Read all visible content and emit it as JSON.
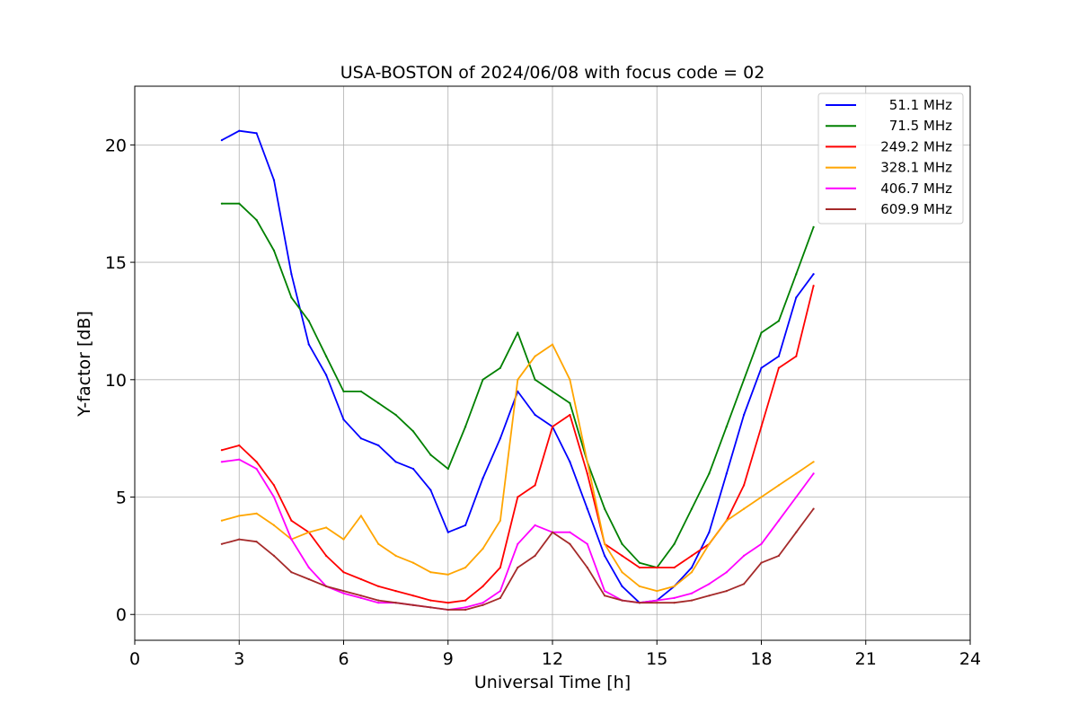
{
  "chart_data": {
    "type": "line",
    "title": "USA-BOSTON of 2024/06/08 with focus code = 02",
    "xlabel": "Universal Time [h]",
    "ylabel": "Y-factor [dB]",
    "xlim": [
      0,
      24
    ],
    "ylim": [
      -1.1,
      22.5
    ],
    "xticks": [
      0,
      3,
      6,
      9,
      12,
      15,
      18,
      21,
      24
    ],
    "yticks": [
      0,
      5,
      10,
      15,
      20
    ],
    "grid": true,
    "legend_position": "top-right",
    "series": [
      {
        "name": "51.1 MHz",
        "color": "#0000ff",
        "x": [
          2.5,
          3.0,
          3.5,
          4.0,
          4.5,
          5.0,
          5.5,
          6.0,
          6.5,
          7.0,
          7.5,
          8.0,
          8.5,
          9.0,
          9.5,
          10.0,
          10.5,
          11.0,
          11.5,
          12.0,
          12.5,
          13.0,
          13.5,
          14.0,
          14.5,
          15.0,
          15.5,
          16.0,
          16.5,
          17.0,
          17.5,
          18.0,
          18.5,
          19.0,
          19.5
        ],
        "y": [
          20.2,
          20.6,
          20.5,
          18.5,
          14.5,
          11.5,
          10.2,
          8.3,
          7.5,
          7.2,
          6.5,
          6.2,
          5.3,
          3.5,
          3.8,
          5.8,
          7.5,
          9.5,
          8.5,
          8.0,
          6.5,
          4.5,
          2.5,
          1.2,
          0.5,
          0.6,
          1.2,
          2.0,
          3.5,
          6.0,
          8.5,
          10.5,
          11.0,
          13.5,
          14.5
        ]
      },
      {
        "name": "71.5 MHz",
        "color": "#008000",
        "x": [
          2.5,
          3.0,
          3.5,
          4.0,
          4.5,
          5.0,
          5.5,
          6.0,
          6.5,
          7.0,
          7.5,
          8.0,
          8.5,
          9.0,
          9.5,
          10.0,
          10.5,
          11.0,
          11.5,
          12.0,
          12.5,
          13.0,
          13.5,
          14.0,
          14.5,
          15.0,
          15.5,
          16.0,
          16.5,
          17.0,
          17.5,
          18.0,
          18.5,
          19.0,
          19.5
        ],
        "y": [
          17.5,
          17.5,
          16.8,
          15.5,
          13.5,
          12.5,
          11.0,
          9.5,
          9.5,
          9.0,
          8.5,
          7.8,
          6.8,
          6.2,
          8.0,
          10.0,
          10.5,
          12.0,
          10.0,
          9.5,
          9.0,
          6.5,
          4.5,
          3.0,
          2.2,
          2.0,
          3.0,
          4.5,
          6.0,
          8.0,
          10.0,
          12.0,
          12.5,
          14.5,
          16.5
        ]
      },
      {
        "name": "249.2 MHz",
        "color": "#ff0000",
        "x": [
          2.5,
          3.0,
          3.5,
          4.0,
          4.5,
          5.0,
          5.5,
          6.0,
          6.5,
          7.0,
          7.5,
          8.0,
          8.5,
          9.0,
          9.5,
          10.0,
          10.5,
          11.0,
          11.5,
          12.0,
          12.5,
          13.0,
          13.5,
          14.0,
          14.5,
          15.0,
          15.5,
          16.0,
          16.5,
          17.0,
          17.5,
          18.0,
          18.5,
          19.0,
          19.5
        ],
        "y": [
          7.0,
          7.2,
          6.5,
          5.5,
          4.0,
          3.5,
          2.5,
          1.8,
          1.5,
          1.2,
          1.0,
          0.8,
          0.6,
          0.5,
          0.6,
          1.2,
          2.0,
          5.0,
          5.5,
          8.0,
          8.5,
          6.0,
          3.0,
          2.5,
          2.0,
          2.0,
          2.0,
          2.5,
          3.0,
          4.0,
          5.5,
          8.0,
          10.5,
          11.0,
          14.0
        ]
      },
      {
        "name": "328.1 MHz",
        "color": "#ffa500",
        "x": [
          2.5,
          3.0,
          3.5,
          4.0,
          4.5,
          5.0,
          5.5,
          6.0,
          6.5,
          7.0,
          7.5,
          8.0,
          8.5,
          9.0,
          9.5,
          10.0,
          10.5,
          11.0,
          11.5,
          12.0,
          12.5,
          13.0,
          13.5,
          14.0,
          14.5,
          15.0,
          15.5,
          16.0,
          16.5,
          17.0,
          17.5,
          18.0,
          18.5,
          19.0,
          19.5
        ],
        "y": [
          4.0,
          4.2,
          4.3,
          3.8,
          3.2,
          3.5,
          3.7,
          3.2,
          4.2,
          3.0,
          2.5,
          2.2,
          1.8,
          1.7,
          2.0,
          2.8,
          4.0,
          10.0,
          11.0,
          11.5,
          10.0,
          6.5,
          3.0,
          1.8,
          1.2,
          1.0,
          1.2,
          1.8,
          3.0,
          4.0,
          4.5,
          5.0,
          5.5,
          6.0,
          6.5
        ]
      },
      {
        "name": "406.7 MHz",
        "color": "#ff00ff",
        "x": [
          2.5,
          3.0,
          3.5,
          4.0,
          4.5,
          5.0,
          5.5,
          6.0,
          6.5,
          7.0,
          7.5,
          8.0,
          8.5,
          9.0,
          9.5,
          10.0,
          10.5,
          11.0,
          11.5,
          12.0,
          12.5,
          13.0,
          13.5,
          14.0,
          14.5,
          15.0,
          15.5,
          16.0,
          16.5,
          17.0,
          17.5,
          18.0,
          18.5,
          19.0,
          19.5
        ],
        "y": [
          6.5,
          6.6,
          6.2,
          5.0,
          3.2,
          2.0,
          1.2,
          0.9,
          0.7,
          0.5,
          0.5,
          0.4,
          0.3,
          0.2,
          0.3,
          0.5,
          1.0,
          3.0,
          3.8,
          3.5,
          3.5,
          3.0,
          1.0,
          0.6,
          0.5,
          0.6,
          0.7,
          0.9,
          1.3,
          1.8,
          2.5,
          3.0,
          4.0,
          5.0,
          6.0
        ]
      },
      {
        "name": "609.9 MHz",
        "color": "#a52a2a",
        "x": [
          2.5,
          3.0,
          3.5,
          4.0,
          4.5,
          5.0,
          5.5,
          6.0,
          6.5,
          7.0,
          7.5,
          8.0,
          8.5,
          9.0,
          9.5,
          10.0,
          10.5,
          11.0,
          11.5,
          12.0,
          12.5,
          13.0,
          13.5,
          14.0,
          14.5,
          15.0,
          15.5,
          16.0,
          16.5,
          17.0,
          17.5,
          18.0,
          18.5,
          19.0,
          19.5
        ],
        "y": [
          3.0,
          3.2,
          3.1,
          2.5,
          1.8,
          1.5,
          1.2,
          1.0,
          0.8,
          0.6,
          0.5,
          0.4,
          0.3,
          0.2,
          0.2,
          0.4,
          0.7,
          2.0,
          2.5,
          3.5,
          3.0,
          2.0,
          0.8,
          0.6,
          0.5,
          0.5,
          0.5,
          0.6,
          0.8,
          1.0,
          1.3,
          2.2,
          2.5,
          3.5,
          4.5
        ]
      }
    ]
  }
}
